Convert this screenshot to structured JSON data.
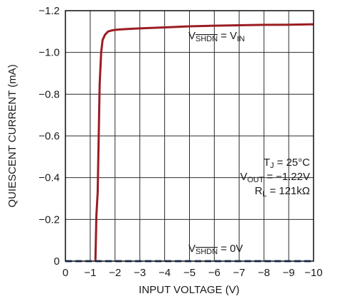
{
  "chart_data": {
    "type": "line",
    "xlabel": "INPUT VOLTAGE (V)",
    "ylabel": "QUIESCENT CURRENT (mA)",
    "xlim": [
      0,
      -10
    ],
    "ylim": [
      0,
      -1.2
    ],
    "x_ticks": [
      "0",
      "−1",
      "−2",
      "−3",
      "−4",
      "−5",
      "−6",
      "−7",
      "−8",
      "−9",
      "−10"
    ],
    "x_tick_values": [
      0,
      -1,
      -2,
      -3,
      -4,
      -5,
      -6,
      -7,
      -8,
      -9,
      -10
    ],
    "y_ticks": [
      "0",
      "−0.2",
      "−0.4",
      "−0.6",
      "−0.8",
      "−1.0",
      "−1.2"
    ],
    "y_tick_values": [
      0,
      -0.2,
      -0.4,
      -0.6,
      -0.8,
      -1.0,
      -1.2
    ],
    "grid": true,
    "series": [
      {
        "color": "#9b1c22",
        "style": "solid",
        "x": [
          -1.21,
          -1.25,
          -1.3,
          -1.38,
          -1.44,
          -1.5,
          -1.6,
          -1.72,
          -1.85,
          -2.0,
          -2.2,
          -2.5,
          -3,
          -4,
          -5,
          -6,
          -7,
          -8,
          -9,
          -10
        ],
        "y": [
          0,
          -0.22,
          -0.33,
          -0.85,
          -1.0,
          -1.06,
          -1.085,
          -1.1,
          -1.105,
          -1.108,
          -1.11,
          -1.112,
          -1.115,
          -1.12,
          -1.125,
          -1.128,
          -1.13,
          -1.132,
          -1.133,
          -1.135
        ]
      },
      {
        "color": "#2c4f8c",
        "style": "dashed",
        "x": [
          0,
          -10
        ],
        "y": [
          0,
          0
        ]
      }
    ],
    "annotations": {
      "on_label": {
        "v": "V",
        "shdn": "SHDN",
        "eq": " = V",
        "in": "IN"
      },
      "off_label": {
        "v": "V",
        "shdn": "SHDN",
        "eq": " = 0V"
      },
      "conditions": {
        "tj_main": "T",
        "tj_sub": "J",
        "tj_val": " = 25°C",
        "vout_main": "V",
        "vout_sub": "OUT",
        "vout_val": " = −1.22V",
        "rl_main": "R",
        "rl_sub": "L",
        "rl_val": " = 121kΩ"
      }
    }
  }
}
